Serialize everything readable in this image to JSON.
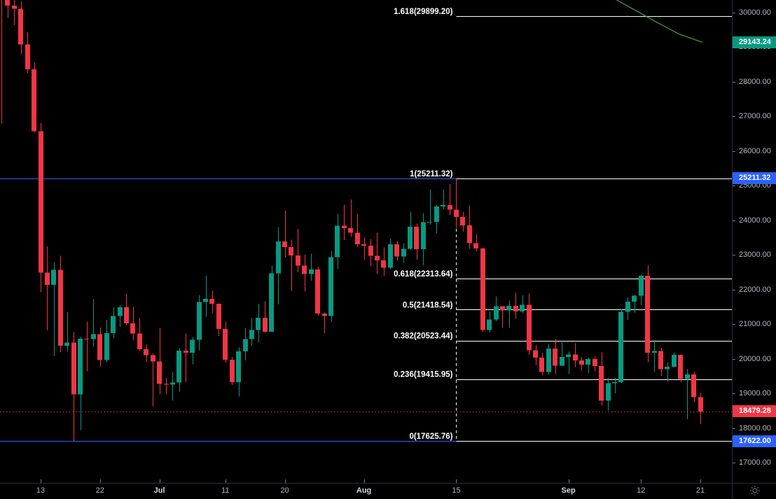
{
  "chart_data": {
    "type": "candlestick",
    "title": "",
    "legend_position": "none",
    "grid": false,
    "colors": {
      "background": "#000000",
      "up": "#089981",
      "down": "#f23645",
      "fib_line": "#ffffff",
      "alert_line": "#2962ff",
      "last_price_line": "#f23645",
      "ma_line": "#4caf50",
      "axis_text": "#b2b5be",
      "axis_border": "#2a2e39",
      "tick_mark": "#787b86"
    },
    "price_axis": {
      "visible_range": [
        16413,
        30364
      ],
      "ticks": [
        {
          "label": "30000.00",
          "value": 30000
        },
        {
          "label": "29000.00",
          "value": 29000
        },
        {
          "label": "28000.00",
          "value": 28000
        },
        {
          "label": "27000.00",
          "value": 27000
        },
        {
          "label": "26000.00",
          "value": 26000
        },
        {
          "label": "25000.00",
          "value": 25000
        },
        {
          "label": "24000.00",
          "value": 24000
        },
        {
          "label": "23000.00",
          "value": 23000
        },
        {
          "label": "22000.00",
          "value": 22000
        },
        {
          "label": "21000.00",
          "value": 21000
        },
        {
          "label": "20000.00",
          "value": 20000
        },
        {
          "label": "19000.00",
          "value": 19000
        },
        {
          "label": "18000.00",
          "value": 18000
        },
        {
          "label": "17000.00",
          "value": 17000
        }
      ],
      "badges": [
        {
          "label": "29143.24",
          "value": 29143.24,
          "color": "#089981"
        },
        {
          "label": "25211.32",
          "value": 25211.32,
          "color": "#2962ff"
        },
        {
          "label": "18479.28",
          "value": 18479.28,
          "color": "#f23645"
        },
        {
          "label": "17622.00",
          "value": 17622.0,
          "color": "#2962ff"
        }
      ]
    },
    "time_axis": {
      "ticks": [
        {
          "label": "13",
          "index": 6,
          "month": false
        },
        {
          "label": "22",
          "index": 15,
          "month": false
        },
        {
          "label": "Jul",
          "index": 24,
          "month": true
        },
        {
          "label": "11",
          "index": 34,
          "month": false
        },
        {
          "label": "20",
          "index": 43,
          "month": false
        },
        {
          "label": "Aug",
          "index": 55,
          "month": true
        },
        {
          "label": "15",
          "index": 69,
          "month": false
        },
        {
          "label": "Sep",
          "index": 86,
          "month": true
        },
        {
          "label": "12",
          "index": 97,
          "month": false
        },
        {
          "label": "21",
          "index": 106,
          "month": false
        }
      ]
    },
    "fib_retracement": {
      "anchor_index": 69,
      "levels": [
        {
          "ratio": "1.618",
          "price": 29899.2,
          "label": "1.618(29899.20)"
        },
        {
          "ratio": "1",
          "price": 25211.32,
          "label": "1(25211.32)"
        },
        {
          "ratio": "0.618",
          "price": 22313.64,
          "label": "0.618(22313.64)"
        },
        {
          "ratio": "0.5",
          "price": 21418.54,
          "label": "0.5(21418.54)"
        },
        {
          "ratio": "0.382",
          "price": 20523.44,
          "label": "0.382(20523.44)"
        },
        {
          "ratio": "0.236",
          "price": 19415.95,
          "label": "0.236(19415.95)"
        },
        {
          "ratio": "0",
          "price": 17625.76,
          "label": "0(17625.76)"
        }
      ]
    },
    "horizontal_lines": [
      {
        "price": 25211.32,
        "style": "solid",
        "color": "#2962ff",
        "name": "alert-line-upper"
      },
      {
        "price": 17622.0,
        "style": "solid",
        "color": "#2962ff",
        "name": "alert-line-lower"
      },
      {
        "price": 18479.28,
        "style": "dotted",
        "color": "#f23645",
        "name": "last-price-line"
      }
    ],
    "ma_line": {
      "color": "#4caf50",
      "last_value": 29143.24,
      "points": [
        [
          93.3,
          30364
        ],
        [
          96.4,
          30040
        ],
        [
          99.6,
          29700
        ],
        [
          102.8,
          29377
        ],
        [
          106.3,
          29143.24
        ]
      ]
    },
    "candles": [
      [
        31370,
        31580,
        26800,
        31125
      ],
      [
        31125,
        31310,
        29847,
        30205
      ],
      [
        30205,
        30680,
        29650,
        30110
      ],
      [
        30110,
        30325,
        28800,
        29083
      ],
      [
        29083,
        29420,
        28250,
        28360
      ],
      [
        28360,
        28550,
        26540,
        26574
      ],
      [
        26574,
        26820,
        21926,
        22487
      ],
      [
        22487,
        23243,
        20825,
        22135
      ],
      [
        22135,
        22795,
        20076,
        22572
      ],
      [
        22572,
        22975,
        20183,
        20381
      ],
      [
        20381,
        21358,
        20205,
        20471
      ],
      [
        20471,
        20775,
        17622,
        18970
      ],
      [
        18970,
        20640,
        17936,
        20574
      ],
      [
        20574,
        21075,
        19637,
        20570
      ],
      [
        20570,
        21723,
        20345,
        20710
      ],
      [
        20710,
        20900,
        19770,
        19965
      ],
      [
        19965,
        21125,
        19905,
        20737
      ],
      [
        20737,
        21475,
        20587,
        21231
      ],
      [
        21231,
        21550,
        20930,
        21485
      ],
      [
        21485,
        21879,
        20970,
        21028
      ],
      [
        21028,
        21510,
        20530,
        20735
      ],
      [
        20735,
        21180,
        20220,
        20280
      ],
      [
        20280,
        20420,
        19910,
        20104
      ],
      [
        20104,
        20150,
        18630,
        19924
      ],
      [
        19924,
        20880,
        18975,
        19279
      ],
      [
        19279,
        19450,
        18980,
        19252
      ],
      [
        19252,
        19620,
        18790,
        19315
      ],
      [
        19315,
        20320,
        19055,
        20231
      ],
      [
        20231,
        20730,
        19320,
        20175
      ],
      [
        20175,
        20630,
        19840,
        20548
      ],
      [
        20548,
        21840,
        20245,
        21637
      ],
      [
        21637,
        22400,
        21215,
        21731
      ],
      [
        21731,
        21965,
        21330,
        21592
      ],
      [
        21592,
        21600,
        20655,
        20860
      ],
      [
        20860,
        21070,
        19880,
        19970
      ],
      [
        19970,
        20055,
        19240,
        19325
      ],
      [
        19325,
        20335,
        18910,
        20211
      ],
      [
        20211,
        20880,
        19950,
        20569
      ],
      [
        20569,
        21190,
        20380,
        20836
      ],
      [
        20836,
        21590,
        20465,
        21190
      ],
      [
        21190,
        21660,
        20755,
        20779
      ],
      [
        20779,
        22680,
        20770,
        22465
      ],
      [
        22465,
        23800,
        21570,
        23389
      ],
      [
        23389,
        24280,
        22920,
        23231
      ],
      [
        23231,
        23440,
        21950,
        22987
      ],
      [
        22987,
        23750,
        22500,
        22690
      ],
      [
        22690,
        23010,
        21940,
        22451
      ],
      [
        22451,
        23020,
        22260,
        22582
      ],
      [
        22582,
        22660,
        21250,
        21311
      ],
      [
        21311,
        21340,
        20740,
        21239
      ],
      [
        21239,
        23110,
        21060,
        22930
      ],
      [
        22930,
        24190,
        22590,
        23843
      ],
      [
        23843,
        24450,
        23430,
        23773
      ],
      [
        23773,
        24600,
        23525,
        23644
      ],
      [
        23644,
        24185,
        23230,
        23303
      ],
      [
        23303,
        23510,
        22850,
        23271
      ],
      [
        23271,
        23460,
        22680,
        22978
      ],
      [
        22978,
        23640,
        22450,
        22846
      ],
      [
        22846,
        23220,
        22400,
        22630
      ],
      [
        22630,
        23470,
        22580,
        23312
      ],
      [
        23312,
        23400,
        22830,
        22954
      ],
      [
        22954,
        23340,
        22760,
        23175
      ],
      [
        23175,
        24245,
        23150,
        23809
      ],
      [
        23809,
        23900,
        22865,
        23164
      ],
      [
        23164,
        24210,
        22700,
        23948
      ],
      [
        23948,
        24900,
        23870,
        23957
      ],
      [
        23957,
        24440,
        23620,
        24402
      ],
      [
        24402,
        24890,
        24310,
        24444
      ],
      [
        24444,
        25050,
        24145,
        24312
      ],
      [
        24312,
        25211,
        23780,
        24095
      ],
      [
        24095,
        24240,
        23670,
        23854
      ],
      [
        23854,
        24435,
        23180,
        23342
      ],
      [
        23342,
        23600,
        23110,
        23191
      ],
      [
        23191,
        23210,
        20770,
        20834
      ],
      [
        20834,
        21370,
        20760,
        21139
      ],
      [
        21139,
        21800,
        21080,
        21516
      ],
      [
        21516,
        21520,
        20890,
        21400
      ],
      [
        21400,
        21680,
        20905,
        21529
      ],
      [
        21529,
        21900,
        21150,
        21368
      ],
      [
        21368,
        21830,
        21315,
        21559
      ],
      [
        21559,
        21880,
        20110,
        20241
      ],
      [
        20241,
        20395,
        19810,
        20037
      ],
      [
        20037,
        20170,
        19520,
        19616
      ],
      [
        19616,
        20430,
        19545,
        20297
      ],
      [
        20297,
        20570,
        19560,
        19796
      ],
      [
        19796,
        20480,
        19790,
        20050
      ],
      [
        20050,
        20200,
        19561,
        20127
      ],
      [
        20127,
        20444,
        19755,
        19953
      ],
      [
        19953,
        20055,
        19655,
        19832
      ],
      [
        19832,
        20029,
        19588,
        19988
      ],
      [
        19988,
        20060,
        19635,
        19794
      ],
      [
        19794,
        20180,
        18649,
        18790
      ],
      [
        18790,
        19460,
        18510,
        19290
      ],
      [
        19290,
        19450,
        19000,
        19320
      ],
      [
        19320,
        21425,
        19290,
        21360
      ],
      [
        21360,
        21770,
        21120,
        21648
      ],
      [
        21648,
        21850,
        21330,
        21826
      ],
      [
        21826,
        22430,
        21550,
        22395
      ],
      [
        22395,
        22700,
        19900,
        20173
      ],
      [
        20173,
        20540,
        19620,
        20226
      ],
      [
        20226,
        20320,
        19500,
        19701
      ],
      [
        19701,
        19890,
        19335,
        19772
      ],
      [
        19772,
        20180,
        19745,
        20115
      ],
      [
        20115,
        20120,
        19330,
        19419
      ],
      [
        19419,
        19700,
        18255,
        19544
      ],
      [
        19544,
        19630,
        18740,
        18890
      ],
      [
        18890,
        19025,
        18125,
        18479.28
      ]
    ]
  },
  "ui": {
    "theme_icon": "sun"
  }
}
